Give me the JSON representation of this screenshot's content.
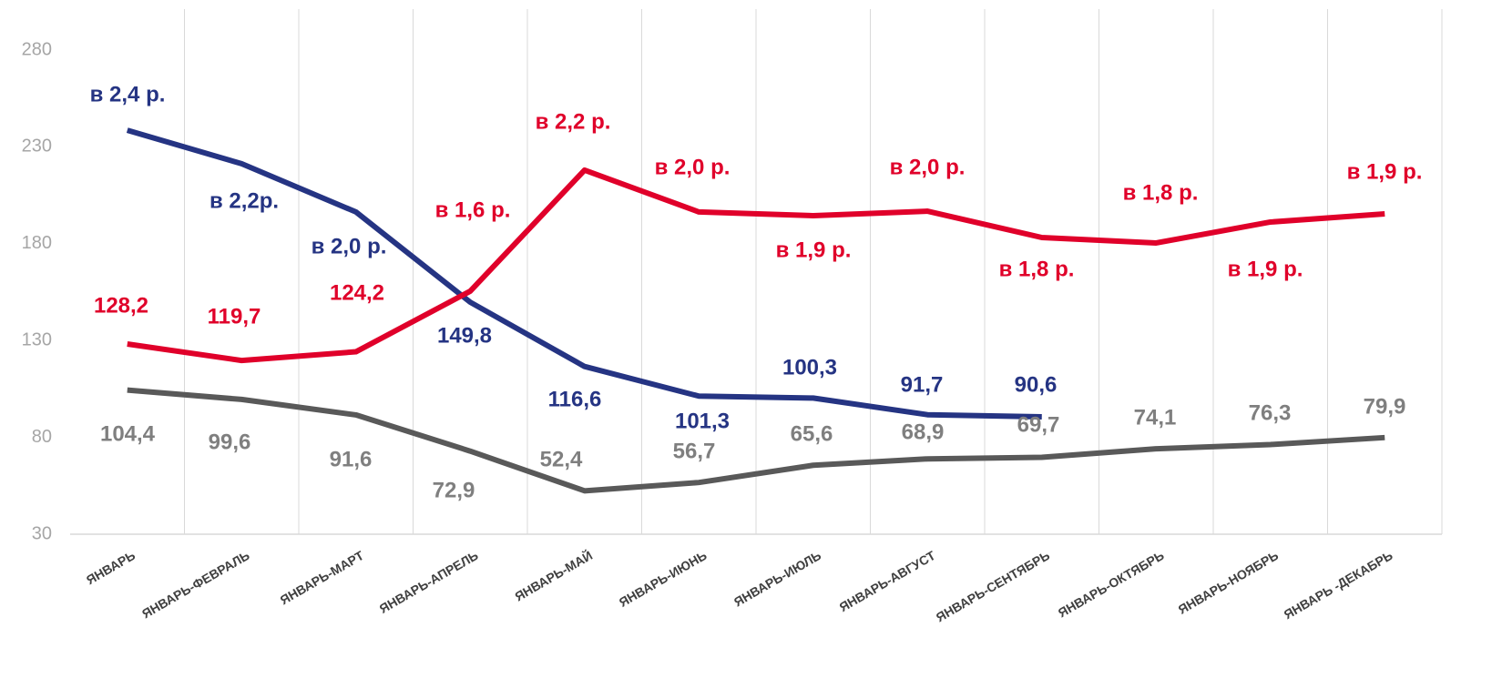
{
  "chart_data": {
    "type": "line",
    "categories": [
      "ЯНВАРЬ",
      "ЯНВАРЬ-ФЕВРАЛЬ",
      "ЯНВАРЬ-МАРТ",
      "ЯНВАРЬ-АПРЕЛЬ",
      "ЯНВАРЬ-МАЙ",
      "ЯНВАРЬ-ИЮНЬ",
      "ЯНВАРЬ-ИЮЛЬ",
      "ЯНВАРЬ-АВГУСТ",
      "ЯНВАРЬ-СЕНТЯБРЬ",
      "ЯНВАРЬ-ОКТЯБРЬ",
      "ЯНВАРЬ-НОЯБРЬ",
      "ЯНВАРЬ -ДЕКАБРЬ"
    ],
    "series": [
      {
        "color": "#595959",
        "values": [
          104.4,
          99.6,
          91.6,
          72.9,
          52.4,
          56.7,
          65.6,
          68.9,
          69.7,
          74.1,
          76.3,
          79.9
        ],
        "value_labels": [
          "104,4",
          "99,6",
          "91,6",
          "72,9",
          "52,4",
          "56,7",
          "65,6",
          "68,9",
          "69,7",
          "74,1",
          "76,3",
          "79,9"
        ]
      },
      {
        "color": "#253483",
        "values": [
          238.6,
          221.3,
          196.4,
          149.8,
          116.6,
          101.3,
          100.3,
          91.7,
          90.6,
          null,
          null,
          null
        ],
        "value_labels": [
          null,
          null,
          null,
          "149,8",
          "116,6",
          "101,3",
          "100,3",
          "91,7",
          "90,6",
          null,
          null,
          null
        ]
      },
      {
        "color": "#e0002a",
        "values": [
          128.2,
          119.7,
          124.2,
          155.5,
          218,
          196.4,
          194.5,
          196.8,
          183.2,
          180.4,
          191.2,
          195.4
        ],
        "value_labels": [
          "128,2",
          "119,7",
          "124,2",
          null,
          null,
          null,
          null,
          null,
          null,
          null,
          null,
          null
        ]
      }
    ],
    "annotations": [
      "в 2,4 р.",
      "в 2,2р.",
      "в 2,0 р.",
      "в 1,6 р.",
      "в 2,2 р.",
      "в 2,0 р.",
      "в 1,9 р.",
      "в 2,0 р.",
      "в 1,8 р.",
      "в 1,8 р.",
      "в 1,9 р.",
      "в 1,9 р."
    ],
    "ylim": [
      30,
      280
    ],
    "yticks": [
      30,
      80,
      130,
      180,
      230,
      280
    ]
  }
}
